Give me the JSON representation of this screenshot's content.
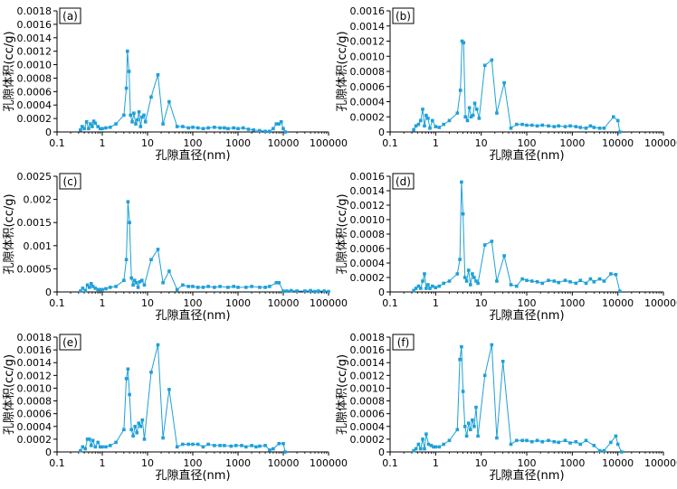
{
  "chart_data": [
    {
      "type": "line",
      "panel_label": "(a)",
      "xlabel": "孔隙直径(nm)",
      "ylabel": "孔隙体积(cc/g)",
      "xscale": "log",
      "xlim": [
        0.1,
        100000
      ],
      "ylim": [
        0,
        0.0018
      ],
      "xtick_labels": [
        "0.1",
        "1",
        "10",
        "100",
        "1000",
        "10000",
        "100000"
      ],
      "yticks": [
        0,
        0.0002,
        0.0004,
        0.0006,
        0.0008,
        0.001,
        0.0012,
        0.0014,
        0.0016,
        0.0018
      ],
      "ytick_labels": [
        "0",
        "0.0002",
        "0.0004",
        "0.0006",
        "0.0008",
        "0.0010",
        "0.0012",
        "0.0014",
        "0.0016",
        "0.0018"
      ],
      "series": [
        {
          "color": "#1ea0d8",
          "x": [
            0.33,
            0.36,
            0.4,
            0.45,
            0.5,
            0.55,
            0.6,
            0.65,
            0.7,
            0.8,
            0.9,
            1.0,
            1.2,
            1.5,
            2.0,
            3.0,
            3.4,
            3.6,
            3.9,
            4.2,
            4.6,
            5.0,
            5.5,
            6.0,
            6.5,
            7.0,
            7.6,
            8.3,
            9.0,
            12,
            17,
            22,
            30,
            45,
            60,
            80,
            100,
            130,
            170,
            220,
            300,
            400,
            500,
            600,
            800,
            1000,
            1300,
            1700,
            2200,
            3000,
            4000,
            5000,
            6000,
            7000,
            8000,
            9000,
            10000,
            11000
          ],
          "y": [
            3e-05,
            8e-05,
            5e-05,
            0.00015,
            5e-05,
            0.00012,
            8e-05,
            0.00016,
            0.00013,
            8e-05,
            5e-05,
            5e-05,
            6e-05,
            7e-05,
            0.00012,
            0.00025,
            0.00065,
            0.0012,
            0.0009,
            0.00025,
            0.00015,
            0.00028,
            0.00012,
            0.00018,
            0.0003,
            8e-05,
            0.00022,
            0.00025,
            0.00015,
            0.00052,
            0.00085,
            0.00012,
            0.00045,
            8e-05,
            8e-05,
            6e-05,
            7e-05,
            6e-05,
            5e-05,
            6e-05,
            7e-05,
            6e-05,
            6e-05,
            5e-05,
            6e-05,
            5e-05,
            6e-05,
            4e-05,
            3e-05,
            2e-05,
            1e-05,
            1e-05,
            5e-05,
            0.00012,
            0.00012,
            0.00015,
            5e-05,
            0.0
          ]
        }
      ]
    },
    {
      "type": "line",
      "panel_label": "(b)",
      "xlabel": "孔隙直径(nm)",
      "ylabel": "孔隙体积(cc/g)",
      "xscale": "log",
      "xlim": [
        0.1,
        100000
      ],
      "ylim": [
        0,
        0.0016
      ],
      "xtick_labels": [
        "0.1",
        "1",
        "10",
        "100",
        "1000",
        "10000",
        "100000"
      ],
      "yticks": [
        0,
        0.0002,
        0.0004,
        0.0006,
        0.0008,
        0.001,
        0.0012,
        0.0014,
        0.0016
      ],
      "ytick_labels": [
        "0",
        "0.0002",
        "0.0004",
        "0.0006",
        "0.0008",
        "0.0010",
        "0.0012",
        "0.0014",
        "0.0016"
      ],
      "series": [
        {
          "color": "#1ea0d8",
          "x": [
            0.33,
            0.37,
            0.42,
            0.47,
            0.52,
            0.57,
            0.62,
            0.68,
            0.75,
            0.85,
            1.0,
            1.2,
            1.5,
            2.0,
            3.0,
            3.5,
            3.8,
            4.1,
            4.5,
            5.0,
            5.5,
            6.0,
            6.6,
            7.2,
            8.0,
            9.0,
            12,
            17,
            22,
            32,
            45,
            60,
            80,
            100,
            130,
            170,
            220,
            300,
            400,
            500,
            700,
            900,
            1200,
            1500,
            2000,
            2500,
            3000,
            4000,
            5000,
            8000,
            10000,
            11000
          ],
          "y": [
            3e-05,
            8e-05,
            0.0001,
            0.00015,
            0.0003,
            8e-05,
            0.00022,
            0.00018,
            5e-05,
            0.00015,
            7e-05,
            6e-05,
            0.0001,
            0.00015,
            0.00025,
            0.00055,
            0.0012,
            0.00118,
            0.0002,
            0.00015,
            0.00032,
            0.0002,
            0.00022,
            0.00038,
            0.0003,
            0.00018,
            0.00088,
            0.00095,
            0.00025,
            0.00065,
            5e-05,
            0.0001,
            0.0001,
            9e-05,
            9e-05,
            8e-05,
            9e-05,
            8e-05,
            7e-05,
            8e-05,
            7e-05,
            8e-05,
            7e-05,
            6e-05,
            5e-05,
            8e-05,
            6e-05,
            5e-05,
            5e-05,
            0.0002,
            0.00015,
            0.0
          ]
        }
      ]
    },
    {
      "type": "line",
      "panel_label": "(c)",
      "xlabel": "孔隙直径(nm)",
      "ylabel": "孔隙体积(cc/g)",
      "xscale": "log",
      "xlim": [
        0.1,
        100000
      ],
      "ylim": [
        0,
        0.0025
      ],
      "xtick_labels": [
        "0.1",
        "1",
        "10",
        "100",
        "1000",
        "10000",
        "100000"
      ],
      "yticks": [
        0,
        0.0005,
        0.001,
        0.0015,
        0.002,
        0.0025
      ],
      "ytick_labels": [
        "0",
        "0.0005",
        "0.001",
        "0.0015",
        "0.002",
        "0.0025"
      ],
      "series": [
        {
          "color": "#1ea0d8",
          "x": [
            0.33,
            0.37,
            0.42,
            0.47,
            0.52,
            0.57,
            0.62,
            0.7,
            0.8,
            0.9,
            1.0,
            1.2,
            1.5,
            2.0,
            3.0,
            3.4,
            3.7,
            4.0,
            4.4,
            4.8,
            5.2,
            5.7,
            6.2,
            6.8,
            7.5,
            8.5,
            12,
            17,
            22,
            30,
            45,
            60,
            80,
            100,
            130,
            170,
            220,
            300,
            400,
            600,
            800,
            1000,
            1500,
            2000,
            3000,
            4000,
            5000,
            7000,
            8000,
            10000,
            12000,
            15000,
            20000,
            30000,
            40000,
            50000,
            60000,
            80000,
            100000
          ],
          "y": [
            2e-05,
            8e-05,
            3e-05,
            0.00015,
            0.0001,
            0.00018,
            0.00012,
            8e-05,
            5e-05,
            5e-05,
            5e-05,
            7e-05,
            0.0001,
            0.00012,
            0.00025,
            0.0007,
            0.00195,
            0.0015,
            0.0003,
            0.00015,
            0.00025,
            0.0002,
            0.0001,
            0.00022,
            0.00025,
            0.00015,
            0.0007,
            0.00092,
            0.0002,
            0.00045,
            5e-05,
            0.00015,
            0.00012,
            0.00012,
            0.0001,
            0.0001,
            0.00012,
            0.0001,
            0.00012,
            0.0001,
            0.00012,
            0.0001,
            0.0001,
            0.00012,
            0.0001,
            0.0001,
            0.00012,
            0.0002,
            0.0002,
            2e-05,
            2e-05,
            3e-05,
            2e-05,
            2e-05,
            3e-05,
            1e-05,
            2e-05,
            2e-05,
            1e-05
          ]
        }
      ]
    },
    {
      "type": "line",
      "panel_label": "(d)",
      "xlabel": "孔隙直径(nm)",
      "ylabel": "孔隙体积(cc/g)",
      "xscale": "log",
      "xlim": [
        0.1,
        100000
      ],
      "ylim": [
        0,
        0.0016
      ],
      "xtick_labels": [
        "0.1",
        "1",
        "10",
        "100",
        "1000",
        "10000",
        "100000"
      ],
      "yticks": [
        0,
        0.0002,
        0.0004,
        0.0006,
        0.0008,
        0.001,
        0.0012,
        0.0014,
        0.0016
      ],
      "ytick_labels": [
        "0",
        "0.0002",
        "0.0004",
        "0.0006",
        "0.0008",
        "0.0010",
        "0.0012",
        "0.0014",
        "0.0016"
      ],
      "series": [
        {
          "color": "#1ea0d8",
          "x": [
            0.33,
            0.37,
            0.42,
            0.47,
            0.52,
            0.57,
            0.62,
            0.68,
            0.75,
            0.85,
            1.0,
            1.2,
            1.5,
            2.0,
            3.0,
            3.4,
            3.7,
            4.0,
            4.4,
            4.8,
            5.3,
            5.8,
            6.4,
            7.0,
            7.7,
            8.5,
            12,
            17,
            22,
            32,
            45,
            60,
            80,
            100,
            130,
            170,
            220,
            300,
            400,
            500,
            700,
            900,
            1200,
            1500,
            2000,
            2500,
            3000,
            4000,
            5000,
            7000,
            9000,
            11000
          ],
          "y": [
            2e-05,
            5e-05,
            8e-05,
            5e-05,
            0.00015,
            0.00025,
            5e-05,
            0.0001,
            5e-05,
            8e-05,
            6e-05,
            8e-05,
            0.00012,
            0.00015,
            0.00025,
            0.00045,
            0.00152,
            0.00108,
            0.0002,
            0.00015,
            0.0003,
            0.0001,
            0.00025,
            0.0002,
            0.00015,
            0.00012,
            0.00065,
            0.0007,
            0.00015,
            0.0005,
            0.0001,
            8e-05,
            0.00018,
            0.00016,
            0.00015,
            0.00014,
            0.00012,
            0.00016,
            0.00015,
            0.00013,
            0.00016,
            0.00014,
            0.00012,
            0.00016,
            0.00012,
            0.00018,
            0.00014,
            0.00018,
            0.00015,
            0.00025,
            0.00024,
            1e-05
          ]
        }
      ]
    },
    {
      "type": "line",
      "panel_label": "(e)",
      "xlabel": "孔隙直径(nm)",
      "ylabel": "孔隙体积(cc/g)",
      "xscale": "log",
      "xlim": [
        0.1,
        100000
      ],
      "ylim": [
        0,
        0.0018
      ],
      "xtick_labels": [
        "0.1",
        "1",
        "10",
        "100",
        "1000",
        "10000",
        "100000"
      ],
      "yticks": [
        0,
        0.0002,
        0.0004,
        0.0006,
        0.0008,
        0.001,
        0.0012,
        0.0014,
        0.0016,
        0.0018
      ],
      "ytick_labels": [
        "0",
        "0.0002",
        "0.0004",
        "0.0006",
        "0.0008",
        "0.0010",
        "0.0012",
        "0.0014",
        "0.0016",
        "0.0018"
      ],
      "series": [
        {
          "color": "#1ea0d8",
          "x": [
            0.33,
            0.37,
            0.42,
            0.47,
            0.52,
            0.57,
            0.62,
            0.7,
            0.8,
            0.9,
            1.0,
            1.2,
            1.5,
            2.0,
            3.0,
            3.4,
            3.7,
            4.0,
            4.4,
            4.8,
            5.3,
            5.8,
            6.4,
            7.0,
            7.7,
            8.5,
            12,
            17,
            22,
            30,
            45,
            60,
            80,
            100,
            130,
            170,
            220,
            300,
            400,
            500,
            700,
            900,
            1200,
            1500,
            2000,
            2500,
            3000,
            4000,
            5000,
            6000,
            8000,
            10000,
            11000
          ],
          "y": [
            2e-05,
            8e-05,
            5e-05,
            0.0002,
            0.0002,
            0.0001,
            0.00018,
            8e-05,
            0.00015,
            8e-05,
            8e-05,
            8e-05,
            0.0001,
            0.00015,
            0.00035,
            0.00115,
            0.0013,
            0.0009,
            0.00035,
            0.00025,
            0.0004,
            0.0003,
            0.00045,
            0.0004,
            0.0005,
            0.0002,
            0.00125,
            0.00168,
            0.00022,
            0.00098,
            8e-05,
            0.00012,
            0.00012,
            0.00012,
            0.00012,
            8e-05,
            0.00012,
            0.0001,
            0.0001,
            0.0001,
            9e-05,
            0.0001,
            0.0001,
            8e-05,
            0.0001,
            8e-05,
            9e-05,
            0.0001,
            3e-05,
            5e-05,
            0.00013,
            0.00013,
            0.0
          ]
        }
      ]
    },
    {
      "type": "line",
      "panel_label": "(f)",
      "xlabel": "孔隙直径(nm)",
      "ylabel": "孔隙体积(cc/g)",
      "xscale": "log",
      "xlim": [
        0.1,
        100000
      ],
      "ylim": [
        0,
        0.0018
      ],
      "xtick_labels": [
        "0.1",
        "1",
        "10",
        "100",
        "1000",
        "10000",
        "100000"
      ],
      "yticks": [
        0,
        0.0002,
        0.0004,
        0.0006,
        0.0008,
        0.001,
        0.0012,
        0.0014,
        0.0016,
        0.0018
      ],
      "ytick_labels": [
        "0",
        "0.0002",
        "0.0004",
        "0.0006",
        "0.0008",
        "0.0010",
        "0.0012",
        "0.0014",
        "0.0016",
        "0.0018"
      ],
      "series": [
        {
          "color": "#1ea0d8",
          "x": [
            0.33,
            0.37,
            0.42,
            0.47,
            0.52,
            0.57,
            0.62,
            0.7,
            0.8,
            0.9,
            1.0,
            1.2,
            1.5,
            2.0,
            3.0,
            3.4,
            3.7,
            4.0,
            4.4,
            4.8,
            5.3,
            5.8,
            6.4,
            7.0,
            7.7,
            8.5,
            12,
            17,
            22,
            30,
            45,
            60,
            80,
            100,
            130,
            170,
            220,
            300,
            400,
            500,
            700,
            900,
            1200,
            1500,
            2000,
            3000,
            4000,
            5000,
            7000,
            9000,
            10000,
            12000
          ],
          "y": [
            2e-05,
            5e-05,
            0.00012,
            5e-05,
            0.0002,
            5e-05,
            0.00028,
            0.00012,
            0.0001,
            8e-05,
            8e-05,
            8e-05,
            0.00012,
            0.00018,
            0.00035,
            0.00145,
            0.00165,
            0.00095,
            0.0004,
            0.00025,
            0.00045,
            0.00035,
            0.0005,
            0.0004,
            0.0007,
            0.00025,
            0.0012,
            0.00168,
            0.00022,
            0.00142,
            0.00012,
            0.00018,
            0.00018,
            0.00018,
            0.00016,
            0.00018,
            0.00016,
            0.00018,
            0.00016,
            0.00015,
            0.00018,
            0.00014,
            0.00016,
            0.00012,
            0.00018,
            0.0001,
            2e-05,
            2e-05,
            0.00015,
            0.00025,
            0.00012,
            0.0
          ]
        }
      ]
    }
  ]
}
